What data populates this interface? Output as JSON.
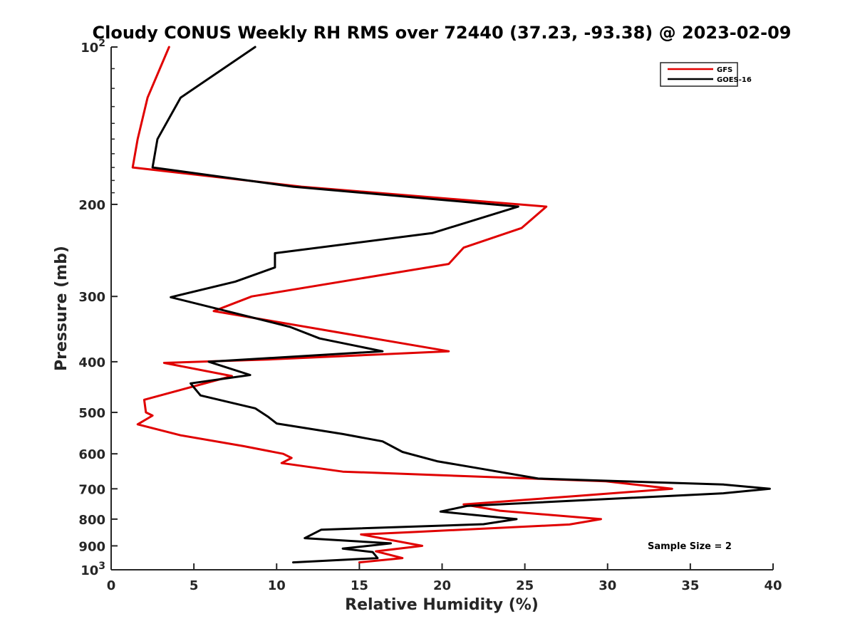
{
  "chart_data": {
    "type": "line",
    "title": "Cloudy CONUS Weekly RH RMS over 72440 (37.23, -93.38) @ 2023-02-09",
    "xlabel": "Relative Humidity (%)",
    "ylabel": "Pressure (mb)",
    "xlim": [
      0,
      40
    ],
    "ylim": [
      100,
      1000
    ],
    "y_scale": "log",
    "y_reversed": true,
    "x_ticks": [
      0,
      5,
      10,
      15,
      20,
      25,
      30,
      35,
      40
    ],
    "y_ticks": [
      {
        "value": 100,
        "label": "10",
        "sup": "2"
      },
      {
        "value": 200,
        "label": "200",
        "sup": ""
      },
      {
        "value": 300,
        "label": "300",
        "sup": ""
      },
      {
        "value": 400,
        "label": "400",
        "sup": ""
      },
      {
        "value": 500,
        "label": "500",
        "sup": ""
      },
      {
        "value": 600,
        "label": "600",
        "sup": ""
      },
      {
        "value": 700,
        "label": "700",
        "sup": ""
      },
      {
        "value": 800,
        "label": "800",
        "sup": ""
      },
      {
        "value": 900,
        "label": "900",
        "sup": ""
      },
      {
        "value": 1000,
        "label": "10",
        "sup": "3"
      }
    ],
    "grid": false,
    "legend_position": "top-right",
    "annotation": "Sample Size = 2",
    "series": [
      {
        "name": "GFS",
        "color": "#e00000",
        "points": [
          [
            3.5,
            100
          ],
          [
            2.2,
            125
          ],
          [
            1.6,
            150
          ],
          [
            1.3,
            170
          ],
          [
            11.5,
            185
          ],
          [
            26.3,
            202
          ],
          [
            24.8,
            222
          ],
          [
            21.3,
            242
          ],
          [
            20.4,
            260
          ],
          [
            8.5,
            300
          ],
          [
            6.2,
            320
          ],
          [
            20.4,
            382
          ],
          [
            9.5,
            396
          ],
          [
            3.2,
            402
          ],
          [
            7.3,
            426
          ],
          [
            2.0,
            473
          ],
          [
            2.1,
            500
          ],
          [
            2.5,
            507
          ],
          [
            1.6,
            527
          ],
          [
            4.2,
            553
          ],
          [
            8.0,
            580
          ],
          [
            10.4,
            600
          ],
          [
            10.9,
            611
          ],
          [
            10.3,
            625
          ],
          [
            14.0,
            649
          ],
          [
            29.9,
            677
          ],
          [
            33.9,
            700
          ],
          [
            28.0,
            723
          ],
          [
            21.3,
            750
          ],
          [
            23.5,
            771
          ],
          [
            29.6,
            800
          ],
          [
            27.7,
            819
          ],
          [
            18.5,
            846
          ],
          [
            15.1,
            856
          ],
          [
            18.8,
            900
          ],
          [
            16.0,
            922
          ],
          [
            17.6,
            950
          ],
          [
            15.0,
            968
          ]
        ]
      },
      {
        "name": "GOES-16",
        "color": "#000000",
        "points": [
          [
            8.7,
            100
          ],
          [
            4.2,
            125
          ],
          [
            2.8,
            150
          ],
          [
            2.5,
            170
          ],
          [
            11.0,
            185
          ],
          [
            24.6,
            202
          ],
          [
            19.4,
            227
          ],
          [
            9.9,
            248
          ],
          [
            9.9,
            264
          ],
          [
            7.5,
            281
          ],
          [
            3.6,
            301
          ],
          [
            10.8,
            343
          ],
          [
            12.6,
            361
          ],
          [
            16.4,
            382
          ],
          [
            5.9,
            400
          ],
          [
            8.4,
            424
          ],
          [
            4.8,
            440
          ],
          [
            5.4,
            464
          ],
          [
            8.7,
            491
          ],
          [
            9.5,
            510
          ],
          [
            10.0,
            525
          ],
          [
            14.0,
            550
          ],
          [
            16.4,
            568
          ],
          [
            17.6,
            595
          ],
          [
            19.7,
            620
          ],
          [
            22.5,
            642
          ],
          [
            25.8,
            669
          ],
          [
            37.0,
            687
          ],
          [
            39.8,
            700
          ],
          [
            37.0,
            714
          ],
          [
            21.5,
            755
          ],
          [
            19.9,
            774
          ],
          [
            24.5,
            800
          ],
          [
            22.5,
            818
          ],
          [
            12.7,
            838
          ],
          [
            11.7,
            870
          ],
          [
            16.9,
            890
          ],
          [
            14.0,
            911
          ],
          [
            15.8,
            925
          ],
          [
            16.1,
            950
          ],
          [
            11.0,
            968
          ]
        ]
      }
    ]
  }
}
